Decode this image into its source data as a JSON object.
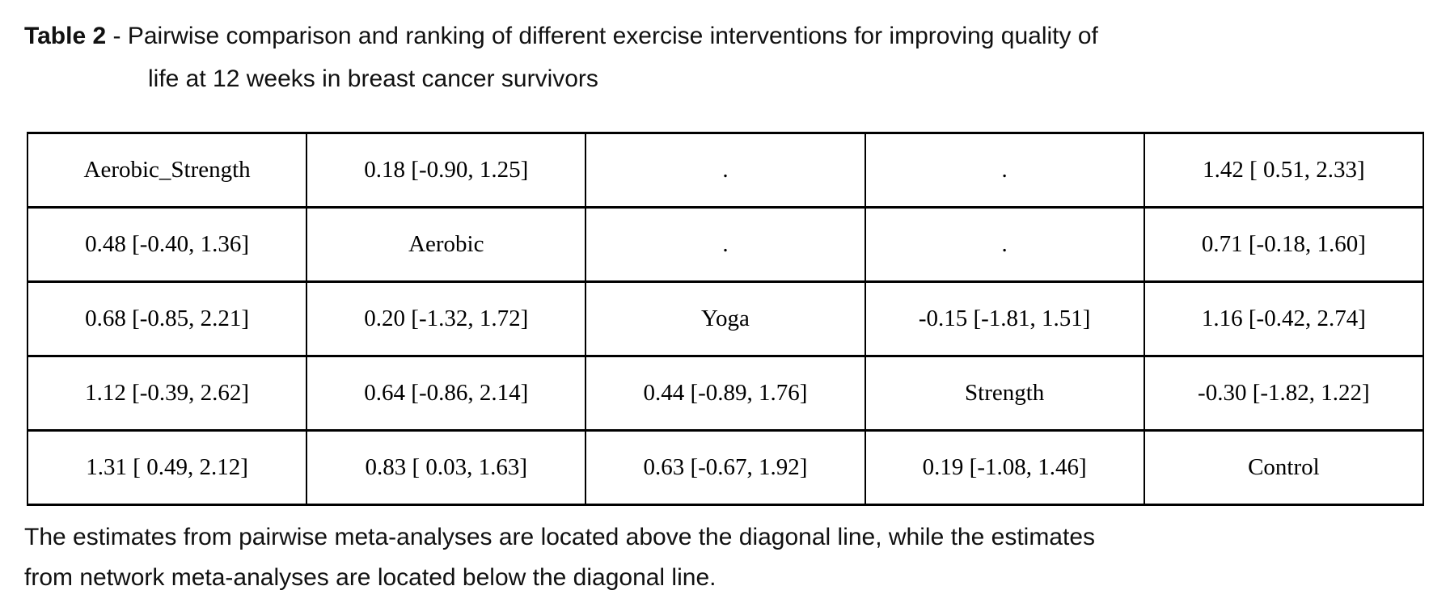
{
  "page": {
    "background_color": "#ffffff",
    "text_color": "#000000"
  },
  "title": {
    "label": "Table 2",
    "separator": " - ",
    "line1_rest": "Pairwise comparison and ranking of different exercise interventions for improving quality of",
    "line2": "life at 12 weeks in breast cancer survivors"
  },
  "table": {
    "rows": [
      [
        "Aerobic_Strength",
        "0.18 [-0.90, 1.25]",
        ".",
        ".",
        "1.42 [ 0.51, 2.33]"
      ],
      [
        "0.48 [-0.40, 1.36]",
        "Aerobic",
        ".",
        ".",
        "0.71 [-0.18, 1.60]"
      ],
      [
        "0.68 [-0.85, 2.21]",
        "0.20 [-1.32, 1.72]",
        "Yoga",
        "-0.15 [-1.81, 1.51]",
        "1.16 [-0.42, 2.74]"
      ],
      [
        "1.12 [-0.39, 2.62]",
        "0.64 [-0.86, 2.14]",
        "0.44 [-0.89, 1.76]",
        "Strength",
        "-0.30 [-1.82, 1.22]"
      ],
      [
        "1.31 [ 0.49, 2.12]",
        "0.83 [ 0.03, 1.63]",
        "0.63 [-0.67, 1.92]",
        "0.19 [-1.08, 1.46]",
        "Control"
      ]
    ]
  },
  "footnote": {
    "line1": "The estimates from pairwise meta-analyses are located above the diagonal line, while the estimates",
    "line2": "from network meta-analyses are located below the diagonal line."
  }
}
